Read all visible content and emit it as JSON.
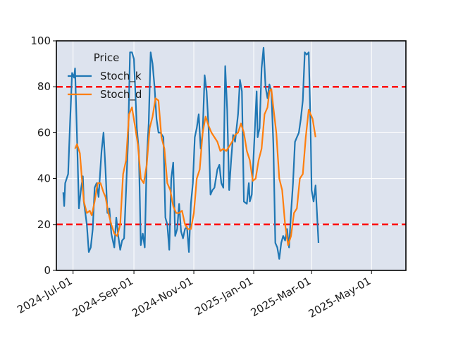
{
  "chart_data": {
    "type": "line",
    "legend": {
      "title": "Price",
      "placement": "top-left"
    },
    "grid": true,
    "xlim": [
      "2024-06-14",
      "2025-06-05"
    ],
    "ylim": [
      0,
      100
    ],
    "x_ticks": [
      "2024-07-01",
      "2024-09-01",
      "2024-11-01",
      "2025-01-01",
      "2025-03-01",
      "2025-05-01"
    ],
    "x_tick_labels": [
      "2024-Jul-01",
      "2024-Sep-01",
      "2024-Nov-01",
      "2025-Jan-01",
      "2025-Mar-01",
      "2025-May-01"
    ],
    "y_ticks": [
      0,
      20,
      40,
      60,
      80,
      100
    ],
    "y_tick_labels": [
      "0",
      "20",
      "40",
      "60",
      "80",
      "100"
    ],
    "reference_lines": [
      {
        "value": 80,
        "color": "#ff0000",
        "style": "dashed"
      },
      {
        "value": 20,
        "color": "#ff0000",
        "style": "dashed"
      }
    ],
    "series": [
      {
        "name": "Stoch_k",
        "color": "#1f77b4",
        "points": [
          [
            "2024-06-21",
            34
          ],
          [
            "2024-06-22",
            28
          ],
          [
            "2024-06-23",
            38
          ],
          [
            "2024-06-26",
            42
          ],
          [
            "2024-06-28",
            65
          ],
          [
            "2024-06-30",
            86
          ],
          [
            "2024-07-02",
            84
          ],
          [
            "2024-07-03",
            88
          ],
          [
            "2024-07-05",
            58
          ],
          [
            "2024-07-07",
            27
          ],
          [
            "2024-07-09",
            35
          ],
          [
            "2024-07-11",
            41
          ],
          [
            "2024-07-12",
            30
          ],
          [
            "2024-07-15",
            20
          ],
          [
            "2024-07-17",
            8
          ],
          [
            "2024-07-19",
            10
          ],
          [
            "2024-07-21",
            18
          ],
          [
            "2024-07-23",
            36
          ],
          [
            "2024-07-25",
            38
          ],
          [
            "2024-07-27",
            32
          ],
          [
            "2024-07-30",
            52
          ],
          [
            "2024-08-01",
            60
          ],
          [
            "2024-08-03",
            44
          ],
          [
            "2024-08-05",
            25
          ],
          [
            "2024-08-07",
            27
          ],
          [
            "2024-08-09",
            16
          ],
          [
            "2024-08-12",
            10
          ],
          [
            "2024-08-14",
            23
          ],
          [
            "2024-08-16",
            15
          ],
          [
            "2024-08-18",
            9
          ],
          [
            "2024-08-20",
            13
          ],
          [
            "2024-08-22",
            14
          ],
          [
            "2024-08-24",
            35
          ],
          [
            "2024-08-26",
            56
          ],
          [
            "2024-08-28",
            95
          ],
          [
            "2024-08-30",
            95
          ],
          [
            "2024-09-01",
            92
          ],
          [
            "2024-09-04",
            62
          ],
          [
            "2024-09-06",
            52
          ],
          [
            "2024-09-08",
            11
          ],
          [
            "2024-09-10",
            16
          ],
          [
            "2024-09-12",
            10
          ],
          [
            "2024-09-14",
            48
          ],
          [
            "2024-09-16",
            64
          ],
          [
            "2024-09-18",
            95
          ],
          [
            "2024-09-20",
            90
          ],
          [
            "2024-09-22",
            80
          ],
          [
            "2024-09-24",
            66
          ],
          [
            "2024-09-26",
            60
          ],
          [
            "2024-09-28",
            60
          ],
          [
            "2024-10-01",
            58
          ],
          [
            "2024-10-03",
            23
          ],
          [
            "2024-10-05",
            20
          ],
          [
            "2024-10-07",
            9
          ],
          [
            "2024-10-09",
            40
          ],
          [
            "2024-10-11",
            47
          ],
          [
            "2024-10-13",
            15
          ],
          [
            "2024-10-15",
            18
          ],
          [
            "2024-10-17",
            29
          ],
          [
            "2024-10-19",
            17
          ],
          [
            "2024-10-21",
            14
          ],
          [
            "2024-10-23",
            18
          ],
          [
            "2024-10-25",
            19
          ],
          [
            "2024-10-27",
            8
          ],
          [
            "2024-10-29",
            29
          ],
          [
            "2024-10-31",
            38
          ],
          [
            "2024-11-02",
            58
          ],
          [
            "2024-11-04",
            62
          ],
          [
            "2024-11-06",
            68
          ],
          [
            "2024-11-08",
            53
          ],
          [
            "2024-11-10",
            60
          ],
          [
            "2024-11-12",
            85
          ],
          [
            "2024-11-14",
            78
          ],
          [
            "2024-11-16",
            62
          ],
          [
            "2024-11-18",
            33
          ],
          [
            "2024-11-20",
            35
          ],
          [
            "2024-11-22",
            36
          ],
          [
            "2024-11-25",
            44
          ],
          [
            "2024-11-27",
            46
          ],
          [
            "2024-11-29",
            38
          ],
          [
            "2024-12-01",
            36
          ],
          [
            "2024-12-03",
            89
          ],
          [
            "2024-12-05",
            70
          ],
          [
            "2024-12-07",
            35
          ],
          [
            "2024-12-09",
            48
          ],
          [
            "2024-12-11",
            59
          ],
          [
            "2024-12-13",
            56
          ],
          [
            "2024-12-16",
            68
          ],
          [
            "2024-12-18",
            83
          ],
          [
            "2024-12-20",
            78
          ],
          [
            "2024-12-22",
            30
          ],
          [
            "2024-12-25",
            29
          ],
          [
            "2024-12-27",
            38
          ],
          [
            "2024-12-28",
            30
          ],
          [
            "2024-12-30",
            33
          ],
          [
            "2025-01-02",
            60
          ],
          [
            "2025-01-04",
            78
          ],
          [
            "2025-01-05",
            58
          ],
          [
            "2025-01-07",
            62
          ],
          [
            "2025-01-09",
            88
          ],
          [
            "2025-01-11",
            97
          ],
          [
            "2025-01-13",
            80
          ],
          [
            "2025-01-15",
            75
          ],
          [
            "2025-01-17",
            81
          ],
          [
            "2025-01-19",
            78
          ],
          [
            "2025-01-21",
            55
          ],
          [
            "2025-01-23",
            12
          ],
          [
            "2025-01-25",
            10
          ],
          [
            "2025-01-27",
            5
          ],
          [
            "2025-01-29",
            12
          ],
          [
            "2025-01-31",
            15
          ],
          [
            "2025-02-02",
            13
          ],
          [
            "2025-02-04",
            18
          ],
          [
            "2025-02-06",
            10
          ],
          [
            "2025-02-08",
            25
          ],
          [
            "2025-02-10",
            38
          ],
          [
            "2025-02-12",
            56
          ],
          [
            "2025-02-14",
            58
          ],
          [
            "2025-02-16",
            60
          ],
          [
            "2025-02-18",
            66
          ],
          [
            "2025-02-20",
            74
          ],
          [
            "2025-02-22",
            95
          ],
          [
            "2025-02-24",
            94
          ],
          [
            "2025-02-26",
            95
          ],
          [
            "2025-02-28",
            60
          ],
          [
            "2025-03-01",
            35
          ],
          [
            "2025-03-03",
            30
          ],
          [
            "2025-03-05",
            37
          ],
          [
            "2025-03-08",
            12
          ]
        ]
      },
      {
        "name": "Stoch_d",
        "color": "#ff7f0e",
        "points": [
          [
            "2024-07-03",
            53
          ],
          [
            "2024-07-05",
            55
          ],
          [
            "2024-07-08",
            51
          ],
          [
            "2024-07-10",
            40
          ],
          [
            "2024-07-12",
            30
          ],
          [
            "2024-07-15",
            25
          ],
          [
            "2024-07-18",
            26
          ],
          [
            "2024-07-20",
            24
          ],
          [
            "2024-07-23",
            30
          ],
          [
            "2024-07-26",
            38
          ],
          [
            "2024-07-29",
            38
          ],
          [
            "2024-08-01",
            34
          ],
          [
            "2024-08-03",
            32
          ],
          [
            "2024-08-06",
            25
          ],
          [
            "2024-08-09",
            20
          ],
          [
            "2024-08-12",
            16
          ],
          [
            "2024-08-15",
            15
          ],
          [
            "2024-08-18",
            20
          ],
          [
            "2024-08-21",
            42
          ],
          [
            "2024-08-24",
            48
          ],
          [
            "2024-08-27",
            68
          ],
          [
            "2024-08-30",
            71
          ],
          [
            "2024-09-02",
            63
          ],
          [
            "2024-09-05",
            55
          ],
          [
            "2024-09-08",
            40
          ],
          [
            "2024-09-11",
            38
          ],
          [
            "2024-09-14",
            46
          ],
          [
            "2024-09-17",
            62
          ],
          [
            "2024-09-20",
            67
          ],
          [
            "2024-09-23",
            75
          ],
          [
            "2024-09-26",
            74
          ],
          [
            "2024-09-29",
            58
          ],
          [
            "2024-10-02",
            53
          ],
          [
            "2024-10-05",
            38
          ],
          [
            "2024-10-08",
            35
          ],
          [
            "2024-10-11",
            28
          ],
          [
            "2024-10-14",
            25
          ],
          [
            "2024-10-17",
            25
          ],
          [
            "2024-10-20",
            26
          ],
          [
            "2024-10-23",
            20
          ],
          [
            "2024-10-26",
            18
          ],
          [
            "2024-10-29",
            18
          ],
          [
            "2024-11-01",
            25
          ],
          [
            "2024-11-04",
            40
          ],
          [
            "2024-11-07",
            44
          ],
          [
            "2024-11-10",
            60
          ],
          [
            "2024-11-13",
            67
          ],
          [
            "2024-11-16",
            63
          ],
          [
            "2024-11-19",
            60
          ],
          [
            "2024-11-22",
            58
          ],
          [
            "2024-11-25",
            56
          ],
          [
            "2024-11-28",
            52
          ],
          [
            "2024-12-01",
            53
          ],
          [
            "2024-12-04",
            52
          ],
          [
            "2024-12-07",
            54
          ],
          [
            "2024-12-10",
            56
          ],
          [
            "2024-12-13",
            59
          ],
          [
            "2024-12-16",
            60
          ],
          [
            "2024-12-19",
            64
          ],
          [
            "2024-12-22",
            60
          ],
          [
            "2024-12-25",
            52
          ],
          [
            "2024-12-28",
            48
          ],
          [
            "2024-12-31",
            39
          ],
          [
            "2025-01-03",
            40
          ],
          [
            "2025-01-06",
            48
          ],
          [
            "2025-01-09",
            53
          ],
          [
            "2025-01-12",
            68
          ],
          [
            "2025-01-15",
            71
          ],
          [
            "2025-01-17",
            78
          ],
          [
            "2025-01-19",
            79
          ],
          [
            "2025-01-21",
            71
          ],
          [
            "2025-01-24",
            60
          ],
          [
            "2025-01-27",
            40
          ],
          [
            "2025-01-30",
            35
          ],
          [
            "2025-02-02",
            20
          ],
          [
            "2025-02-05",
            11
          ],
          [
            "2025-02-08",
            15
          ],
          [
            "2025-02-11",
            25
          ],
          [
            "2025-02-14",
            27
          ],
          [
            "2025-02-17",
            40
          ],
          [
            "2025-02-20",
            42
          ],
          [
            "2025-02-23",
            58
          ],
          [
            "2025-02-26",
            70
          ],
          [
            "2025-02-28",
            68
          ],
          [
            "2025-03-02",
            66
          ],
          [
            "2025-03-05",
            58
          ]
        ]
      }
    ]
  }
}
